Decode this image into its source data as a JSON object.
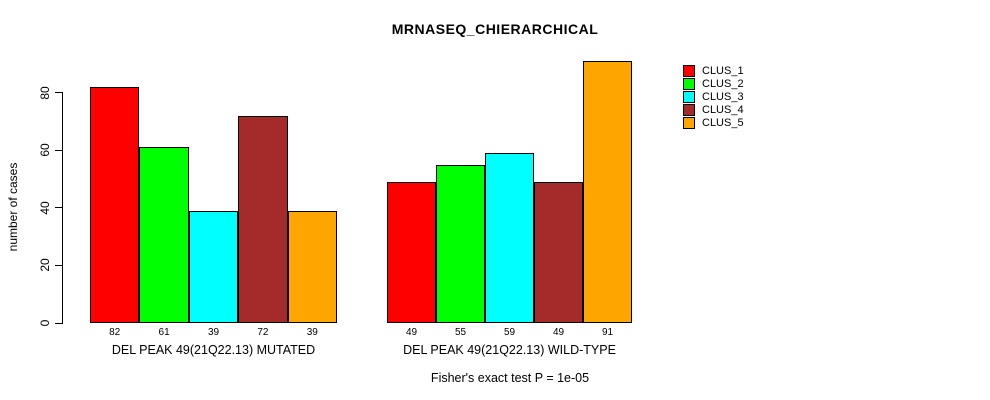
{
  "title": "MRNASEQ_CHIERARCHICAL",
  "y_axis": {
    "label": "number of cases",
    "ticks": [
      "0",
      "20",
      "40",
      "60",
      "80"
    ]
  },
  "footer": "Fisher's exact test P = 1e-05",
  "chart_data": {
    "type": "bar",
    "title": "MRNASEQ_CHIERARCHICAL",
    "xlabel": "",
    "ylabel": "number of cases",
    "yticks": [
      0,
      20,
      40,
      60,
      80
    ],
    "ylim": [
      0,
      91
    ],
    "grid": false,
    "legend_position": "top-right",
    "categories": [
      "DEL PEAK 49(21Q22.13) MUTATED",
      "DEL PEAK 49(21Q22.13) WILD-TYPE"
    ],
    "series": [
      {
        "name": "CLUS_1",
        "color": "#FF0000",
        "values": [
          82,
          49
        ]
      },
      {
        "name": "CLUS_2",
        "color": "#00FF00",
        "values": [
          61,
          55
        ]
      },
      {
        "name": "CLUS_3",
        "color": "#00FFFF",
        "values": [
          39,
          59
        ]
      },
      {
        "name": "CLUS_4",
        "color": "#A52A2A",
        "values": [
          72,
          49
        ]
      },
      {
        "name": "CLUS_5",
        "color": "#FFA500",
        "values": [
          39,
          91
        ]
      }
    ],
    "bar_value_labels": [
      [
        82,
        61,
        39,
        72,
        39
      ],
      [
        49,
        55,
        59,
        49,
        91
      ]
    ],
    "annotation": "Fisher's exact test P = 1e-05"
  },
  "colors": {
    "background": "#FFFFFF",
    "axis": "#000000",
    "text": "#000000"
  }
}
